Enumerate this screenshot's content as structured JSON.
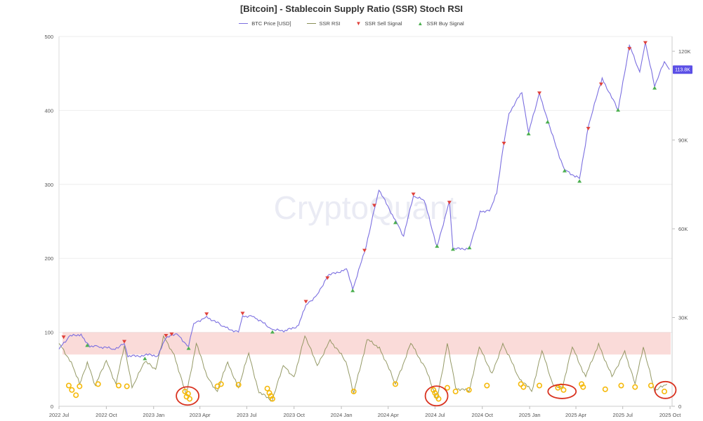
{
  "chart_data": {
    "type": "line",
    "title": "[Bitcoin] - Stablecoin Supply Ratio (SSR) Stoch RSI",
    "watermark": "CryptoQuant",
    "legend": [
      {
        "name": "BTC Price [USD]",
        "symbol": "line",
        "color": "#7b6fe0"
      },
      {
        "name": "SSR RSI",
        "symbol": "line",
        "color": "#8a8f57"
      },
      {
        "name": "SSR Sell Signal",
        "symbol": "triangle-down",
        "color": "#e0413a"
      },
      {
        "name": "SSR Buy Signal",
        "symbol": "triangle-up",
        "color": "#4caf50"
      }
    ],
    "legend_position": "top-center",
    "x_axis": {
      "ticks": [
        "2022 Jul",
        "2022 Oct",
        "2023 Jan",
        "2023 Apr",
        "2023 Jul",
        "2023 Oct",
        "2024 Jan",
        "2024 Apr",
        "2024 Jul",
        "2024 Oct",
        "2025 Jan",
        "2025 Apr",
        "2025 Jul",
        "2025 Oct"
      ],
      "range": [
        "2022-07-01",
        "2025-10-05"
      ]
    },
    "y_left": {
      "label": "SSR RSI",
      "range": [
        0,
        500
      ],
      "ticks": [
        "0",
        "100",
        "200",
        "300",
        "400",
        "500"
      ]
    },
    "y_right": {
      "label": "BTC Price [USD]",
      "range": [
        0,
        125000
      ],
      "ticks": [
        "0",
        "30K",
        "60K",
        "90K",
        "120K"
      ]
    },
    "current_price_label": "113.8K",
    "overbought_band": [
      70,
      100
    ],
    "btc_price": [
      [
        "2022-07-01",
        19300
      ],
      [
        "2022-07-20",
        23500
      ],
      [
        "2022-08-13",
        24400
      ],
      [
        "2022-08-30",
        20000
      ],
      [
        "2022-09-15",
        20200
      ],
      [
        "2022-10-15",
        19300
      ],
      [
        "2022-11-05",
        21200
      ],
      [
        "2022-11-12",
        16700
      ],
      [
        "2022-12-15",
        17300
      ],
      [
        "2023-01-10",
        17200
      ],
      [
        "2023-01-25",
        23000
      ],
      [
        "2023-02-15",
        24500
      ],
      [
        "2023-03-10",
        20300
      ],
      [
        "2023-03-20",
        28000
      ],
      [
        "2023-04-14",
        30400
      ],
      [
        "2023-05-15",
        27000
      ],
      [
        "2023-06-15",
        25100
      ],
      [
        "2023-06-23",
        30600
      ],
      [
        "2023-07-15",
        30300
      ],
      [
        "2023-08-17",
        26200
      ],
      [
        "2023-09-11",
        25100
      ],
      [
        "2023-10-10",
        27400
      ],
      [
        "2023-10-24",
        34200
      ],
      [
        "2023-11-15",
        37800
      ],
      [
        "2023-12-05",
        44000
      ],
      [
        "2024-01-11",
        46500
      ],
      [
        "2024-01-23",
        39500
      ],
      [
        "2024-02-15",
        52000
      ],
      [
        "2024-03-05",
        66500
      ],
      [
        "2024-03-14",
        73000
      ],
      [
        "2024-04-15",
        63000
      ],
      [
        "2024-05-01",
        57500
      ],
      [
        "2024-05-20",
        71000
      ],
      [
        "2024-06-10",
        69500
      ],
      [
        "2024-07-05",
        54000
      ],
      [
        "2024-07-29",
        69500
      ],
      [
        "2024-08-05",
        53000
      ],
      [
        "2024-09-06",
        53500
      ],
      [
        "2024-09-27",
        66000
      ],
      [
        "2024-10-15",
        66000
      ],
      [
        "2024-10-29",
        72000
      ],
      [
        "2024-11-12",
        89000
      ],
      [
        "2024-11-22",
        99000
      ],
      [
        "2024-12-05",
        103000
      ],
      [
        "2024-12-17",
        106000
      ],
      [
        "2024-12-30",
        92500
      ],
      [
        "2025-01-20",
        106000
      ],
      [
        "2025-02-03",
        98000
      ],
      [
        "2025-02-28",
        84000
      ],
      [
        "2025-03-10",
        80000
      ],
      [
        "2025-04-08",
        77000
      ],
      [
        "2025-04-25",
        94500
      ],
      [
        "2025-05-22",
        111000
      ],
      [
        "2025-06-22",
        100000
      ],
      [
        "2025-07-14",
        122000
      ],
      [
        "2025-08-03",
        113000
      ],
      [
        "2025-08-14",
        123000
      ],
      [
        "2025-09-01",
        108000
      ],
      [
        "2025-09-20",
        116500
      ],
      [
        "2025-09-30",
        113800
      ]
    ],
    "ssr_rsi": [
      [
        "2022-07-01",
        85
      ],
      [
        "2022-07-25",
        60
      ],
      [
        "2022-08-10",
        30
      ],
      [
        "2022-08-25",
        60
      ],
      [
        "2022-09-10",
        28
      ],
      [
        "2022-10-01",
        62
      ],
      [
        "2022-10-20",
        30
      ],
      [
        "2022-11-05",
        82
      ],
      [
        "2022-11-20",
        25
      ],
      [
        "2022-12-15",
        60
      ],
      [
        "2023-01-05",
        50
      ],
      [
        "2023-01-20",
        95
      ],
      [
        "2023-02-10",
        70
      ],
      [
        "2023-03-05",
        15
      ],
      [
        "2023-03-25",
        85
      ],
      [
        "2023-04-15",
        40
      ],
      [
        "2023-05-05",
        20
      ],
      [
        "2023-05-25",
        60
      ],
      [
        "2023-06-15",
        25
      ],
      [
        "2023-07-05",
        72
      ],
      [
        "2023-07-25",
        18
      ],
      [
        "2023-08-20",
        8
      ],
      [
        "2023-09-10",
        55
      ],
      [
        "2023-10-01",
        40
      ],
      [
        "2023-10-22",
        95
      ],
      [
        "2023-11-15",
        55
      ],
      [
        "2023-12-10",
        90
      ],
      [
        "2024-01-10",
        60
      ],
      [
        "2024-01-25",
        18
      ],
      [
        "2024-02-20",
        90
      ],
      [
        "2024-03-15",
        80
      ],
      [
        "2024-04-15",
        30
      ],
      [
        "2024-05-15",
        85
      ],
      [
        "2024-06-10",
        55
      ],
      [
        "2024-07-05",
        10
      ],
      [
        "2024-07-25",
        85
      ],
      [
        "2024-08-10",
        25
      ],
      [
        "2024-09-05",
        20
      ],
      [
        "2024-09-25",
        80
      ],
      [
        "2024-10-20",
        45
      ],
      [
        "2024-11-10",
        85
      ],
      [
        "2024-12-10",
        40
      ],
      [
        "2025-01-05",
        20
      ],
      [
        "2025-01-25",
        75
      ],
      [
        "2025-02-15",
        30
      ],
      [
        "2025-03-05",
        25
      ],
      [
        "2025-03-25",
        80
      ],
      [
        "2025-04-20",
        40
      ],
      [
        "2025-05-15",
        85
      ],
      [
        "2025-06-10",
        40
      ],
      [
        "2025-07-05",
        75
      ],
      [
        "2025-07-25",
        30
      ],
      [
        "2025-08-10",
        80
      ],
      [
        "2025-09-01",
        20
      ],
      [
        "2025-09-25",
        30
      ]
    ],
    "buy_circles": [
      [
        "2022-07-20",
        28
      ],
      [
        "2022-07-26",
        22
      ],
      [
        "2022-08-03",
        15
      ],
      [
        "2022-08-10",
        27
      ],
      [
        "2022-09-15",
        30
      ],
      [
        "2022-10-25",
        28
      ],
      [
        "2022-11-10",
        27
      ],
      [
        "2023-03-03",
        20
      ],
      [
        "2023-03-06",
        13
      ],
      [
        "2023-03-09",
        17
      ],
      [
        "2023-03-12",
        10
      ],
      [
        "2023-05-05",
        27
      ],
      [
        "2023-05-12",
        30
      ],
      [
        "2023-06-15",
        29
      ],
      [
        "2023-08-10",
        24
      ],
      [
        "2023-08-14",
        18
      ],
      [
        "2023-08-17",
        14
      ],
      [
        "2023-08-20",
        10
      ],
      [
        "2024-01-25",
        20
      ],
      [
        "2024-04-15",
        30
      ],
      [
        "2024-06-28",
        22
      ],
      [
        "2024-07-01",
        18
      ],
      [
        "2024-07-04",
        14
      ],
      [
        "2024-07-08",
        10
      ],
      [
        "2024-07-25",
        25
      ],
      [
        "2024-08-10",
        20
      ],
      [
        "2024-09-05",
        22
      ],
      [
        "2024-10-10",
        28
      ],
      [
        "2024-12-15",
        30
      ],
      [
        "2024-12-20",
        26
      ],
      [
        "2025-01-20",
        28
      ],
      [
        "2025-02-25",
        25
      ],
      [
        "2025-03-03",
        27
      ],
      [
        "2025-03-08",
        22
      ],
      [
        "2025-04-12",
        30
      ],
      [
        "2025-04-15",
        26
      ],
      [
        "2025-05-28",
        23
      ],
      [
        "2025-06-28",
        28
      ],
      [
        "2025-07-25",
        26
      ],
      [
        "2025-08-25",
        28
      ],
      [
        "2025-09-20",
        20
      ]
    ],
    "sell_signals": [
      [
        "2022-07-10",
        22500
      ],
      [
        "2022-11-05",
        21000
      ],
      [
        "2023-01-25",
        23000
      ],
      [
        "2023-02-05",
        23500
      ],
      [
        "2023-04-14",
        30300
      ],
      [
        "2023-06-23",
        30500
      ],
      [
        "2023-10-24",
        34500
      ],
      [
        "2023-12-05",
        42500
      ],
      [
        "2024-02-15",
        51800
      ],
      [
        "2024-03-05",
        67000
      ],
      [
        "2024-05-20",
        70800
      ],
      [
        "2024-07-29",
        68000
      ],
      [
        "2024-11-12",
        88000
      ],
      [
        "2025-01-20",
        105000
      ],
      [
        "2025-04-25",
        93000
      ],
      [
        "2025-05-20",
        108000
      ],
      [
        "2025-07-14",
        120000
      ],
      [
        "2025-08-14",
        122000
      ]
    ],
    "buy_signals": [
      [
        "2022-08-25",
        21500
      ],
      [
        "2022-12-15",
        17000
      ],
      [
        "2023-03-10",
        20500
      ],
      [
        "2023-08-20",
        26000
      ],
      [
        "2024-01-23",
        40000
      ],
      [
        "2024-04-15",
        63000
      ],
      [
        "2024-07-05",
        55000
      ],
      [
        "2024-08-05",
        54000
      ],
      [
        "2024-09-06",
        54500
      ],
      [
        "2024-12-30",
        93000
      ],
      [
        "2025-02-05",
        97000
      ],
      [
        "2025-03-10",
        80500
      ],
      [
        "2025-04-08",
        77000
      ],
      [
        "2025-06-22",
        101000
      ],
      [
        "2025-09-01",
        108500
      ]
    ],
    "highlight_ellipses": [
      [
        "2023-03-08",
        14
      ],
      [
        "2024-07-04",
        14
      ],
      [
        "2025-03-05",
        20
      ],
      [
        "2025-09-22",
        22
      ]
    ]
  }
}
